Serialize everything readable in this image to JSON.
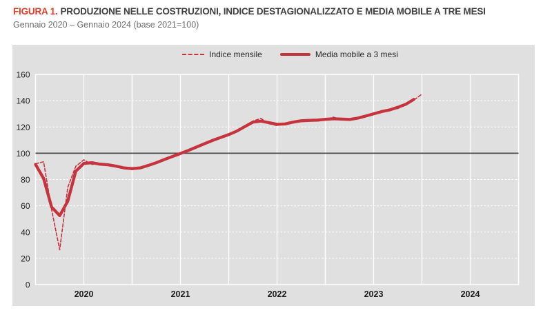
{
  "figure": {
    "label": "FIGURA 1.",
    "title": "PRODUZIONE NELLE COSTRUZIONI, INDICE DESTAGIONALIZZATO E MEDIA MOBILE A TRE MESI",
    "subtitle": "Gennaio 2020 – Gennaio 2024 (base 2021=100)"
  },
  "legend": [
    {
      "label": "Indice mensile",
      "style": "dashed"
    },
    {
      "label": "Media mobile a 3 mesi",
      "style": "solid"
    }
  ],
  "colors": {
    "line_red": "#c5333c",
    "title_red": "#e63b28",
    "title_text": "#3f3f3f",
    "subtitle_text": "#6e6e6e",
    "chart_bg": "#e0e0e0",
    "grid_white": "#ffffff",
    "reference_line": "#4a4a4a",
    "axis_text": "#212121"
  },
  "chart_data": {
    "type": "line",
    "title": "PRODUZIONE NELLE COSTRUZIONI, INDICE DESTAGIONALIZZATO E MEDIA MOBILE A TRE MESI",
    "subtitle": "Gennaio 2020 – Gennaio 2024 (base 2021=100)",
    "x_axis": {
      "start": "2020-01",
      "total_months_shown": 60,
      "gridline_every_months": 6,
      "year_labels": [
        "2020",
        "2021",
        "2022",
        "2023",
        "2024"
      ],
      "year_label_center_months": [
        6,
        18,
        30,
        42,
        54
      ]
    },
    "y_axis": {
      "ticks": [
        0,
        20,
        40,
        60,
        80,
        100,
        120,
        140,
        160
      ],
      "lim": [
        0,
        160
      ],
      "reference_line": 100
    },
    "legend_position": "top-center",
    "grid": true,
    "series": [
      {
        "name": "Indice mensile",
        "style": "dashed",
        "start": "2020-01",
        "start_month_index": 0,
        "values": [
          92.0,
          93.5,
          57.0,
          26.5,
          74.0,
          90.0,
          95.0,
          91.5,
          92.0,
          91.5,
          90.0,
          89.0,
          87.5,
          88.5,
          90.5,
          93.0,
          95.0,
          97.5,
          100.0,
          102.0,
          104.5,
          107.5,
          110.0,
          112.0,
          114.0,
          116.5,
          120.0,
          124.5,
          126.5,
          122.5,
          121.0,
          122.5,
          123.5,
          125.0,
          125.5,
          124.5,
          125.5,
          127.5,
          125.5,
          125.0,
          126.5,
          128.5,
          130.0,
          131.5,
          133.5,
          134.0,
          137.5,
          140.5,
          145.0
        ]
      },
      {
        "name": "Media mobile a 3 mesi",
        "style": "solid",
        "start": "2020-01",
        "start_month_index": 0,
        "values": [
          91.5,
          80.8,
          59.0,
          52.5,
          63.5,
          86.3,
          92.2,
          92.8,
          91.7,
          91.2,
          90.2,
          88.8,
          88.3,
          88.8,
          90.7,
          92.8,
          95.2,
          97.5,
          99.8,
          102.2,
          104.7,
          107.3,
          109.8,
          112.0,
          114.2,
          116.8,
          120.3,
          123.7,
          124.5,
          123.3,
          122.0,
          122.3,
          123.7,
          124.7,
          125.0,
          125.2,
          125.8,
          126.2,
          126.0,
          125.7,
          126.7,
          128.3,
          130.0,
          131.7,
          133.0,
          135.0,
          137.3,
          141.0
        ]
      }
    ]
  }
}
